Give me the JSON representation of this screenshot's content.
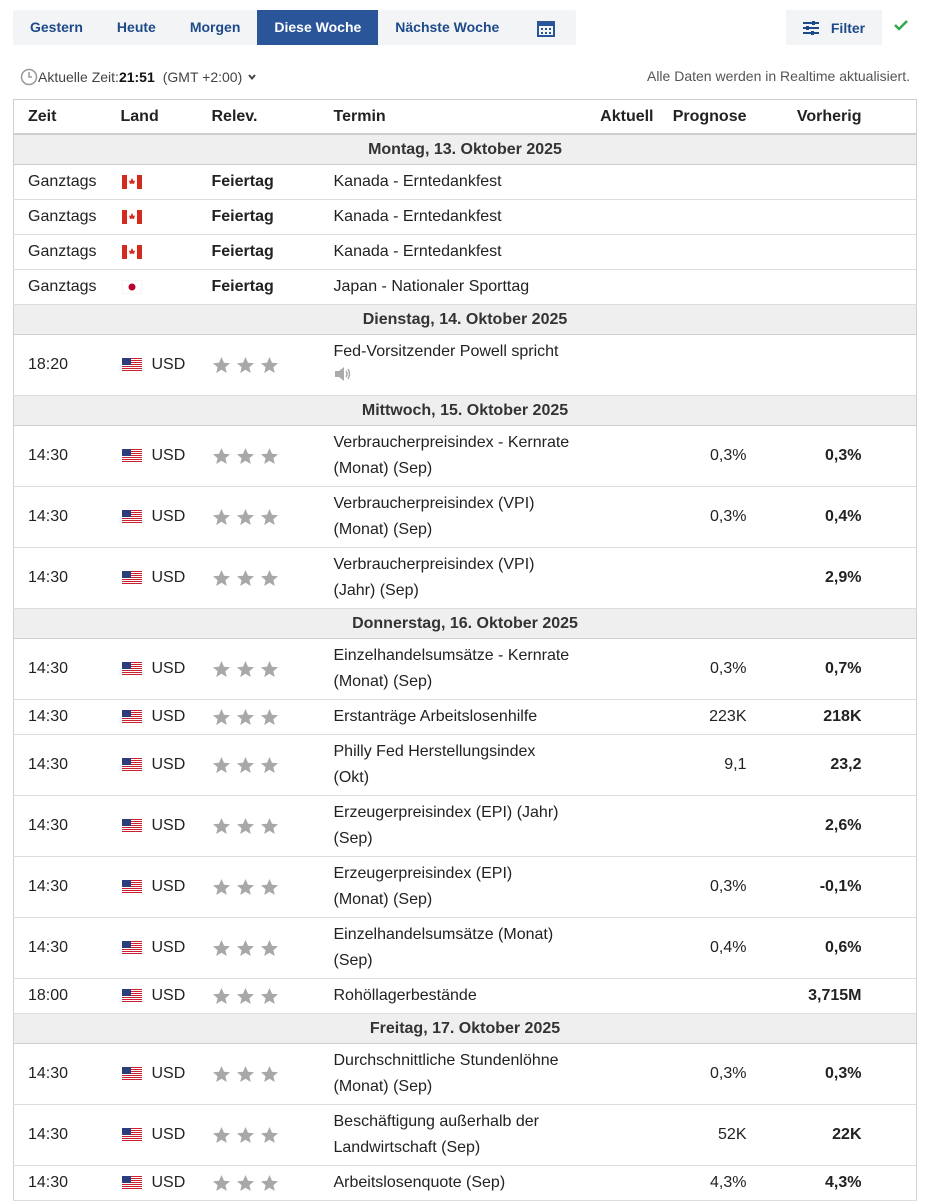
{
  "tabs": [
    "Gestern",
    "Heute",
    "Morgen",
    "Diese Woche",
    "Nächste Woche"
  ],
  "active_tab": 3,
  "filter": "Filter",
  "time_label": "Aktuelle Zeit:",
  "time": "21:51",
  "timezone": "(GMT +2:00)",
  "realtime_note": "Alle Daten werden in Realtime aktualisiert.",
  "columns": [
    "Zeit",
    "Land",
    "Relev.",
    "Termin",
    "Aktuell",
    "Prognose",
    "Vorherig"
  ],
  "days": [
    {
      "date": "Montag, 13. Oktober 2025",
      "events": [
        {
          "time": "Ganztags",
          "flag": "ca",
          "relevance": "Feiertag",
          "event": [
            "Kanada - Erntedankfest"
          ]
        },
        {
          "time": "Ganztags",
          "flag": "ca",
          "relevance": "Feiertag",
          "event": [
            "Kanada - Erntedankfest"
          ]
        },
        {
          "time": "Ganztags",
          "flag": "ca",
          "relevance": "Feiertag",
          "event": [
            "Kanada - Erntedankfest"
          ]
        },
        {
          "time": "Ganztags",
          "flag": "jp",
          "relevance": "Feiertag",
          "event": [
            "Japan - Nationaler Sporttag"
          ]
        }
      ]
    },
    {
      "date": "Dienstag, 14. Oktober 2025",
      "events": [
        {
          "time": "18:20",
          "flag": "us",
          "currency": "USD",
          "event": [
            "Fed-Vorsitzender Powell spricht"
          ],
          "speech": true
        }
      ]
    },
    {
      "date": "Mittwoch, 15. Oktober 2025",
      "events": [
        {
          "time": "14:30",
          "flag": "us",
          "currency": "USD",
          "event": [
            "Verbraucherpreisindex - Kernrate",
            "(Monat) (Sep)"
          ],
          "forecast": "0,3%",
          "previous": "0,3%"
        },
        {
          "time": "14:30",
          "flag": "us",
          "currency": "USD",
          "event": [
            "Verbraucherpreisindex (VPI)",
            "(Monat) (Sep)"
          ],
          "forecast": "0,3%",
          "previous": "0,4%"
        },
        {
          "time": "14:30",
          "flag": "us",
          "currency": "USD",
          "event": [
            "Verbraucherpreisindex (VPI)",
            "(Jahr) (Sep)"
          ],
          "previous": "2,9%"
        }
      ]
    },
    {
      "date": "Donnerstag, 16. Oktober 2025",
      "events": [
        {
          "time": "14:30",
          "flag": "us",
          "currency": "USD",
          "event": [
            "Einzelhandelsumsätze - Kernrate",
            "(Monat) (Sep)"
          ],
          "forecast": "0,3%",
          "previous": "0,7%"
        },
        {
          "time": "14:30",
          "flag": "us",
          "currency": "USD",
          "event": [
            "Erstanträge Arbeitslosenhilfe"
          ],
          "forecast": "223K",
          "previous": "218K"
        },
        {
          "time": "14:30",
          "flag": "us",
          "currency": "USD",
          "event": [
            "Philly Fed Herstellungsindex",
            "(Okt)"
          ],
          "forecast": "9,1",
          "previous": "23,2"
        },
        {
          "time": "14:30",
          "flag": "us",
          "currency": "USD",
          "event": [
            "Erzeugerpreisindex (EPI) (Jahr)",
            "(Sep)"
          ],
          "previous": "2,6%"
        },
        {
          "time": "14:30",
          "flag": "us",
          "currency": "USD",
          "event": [
            "Erzeugerpreisindex (EPI)",
            "(Monat) (Sep)"
          ],
          "forecast": "0,3%",
          "previous": "-0,1%"
        },
        {
          "time": "14:30",
          "flag": "us",
          "currency": "USD",
          "event": [
            "Einzelhandelsumsätze (Monat)",
            "(Sep)"
          ],
          "forecast": "0,4%",
          "previous": "0,6%"
        },
        {
          "time": "18:00",
          "flag": "us",
          "currency": "USD",
          "event": [
            "Rohöllagerbestände"
          ],
          "previous": "3,715M"
        }
      ]
    },
    {
      "date": "Freitag, 17. Oktober 2025",
      "events": [
        {
          "time": "14:30",
          "flag": "us",
          "currency": "USD",
          "event": [
            "Durchschnittliche Stundenlöhne",
            "(Monat) (Sep)"
          ],
          "forecast": "0,3%",
          "previous": "0,3%"
        },
        {
          "time": "14:30",
          "flag": "us",
          "currency": "USD",
          "event": [
            "Beschäftigung außerhalb der",
            "Landwirtschaft (Sep)"
          ],
          "forecast": "52K",
          "previous": "22K"
        },
        {
          "time": "14:30",
          "flag": "us",
          "currency": "USD",
          "event": [
            "Arbeitslosenquote (Sep)"
          ],
          "forecast": "4,3%",
          "previous": "4,3%"
        }
      ]
    }
  ]
}
